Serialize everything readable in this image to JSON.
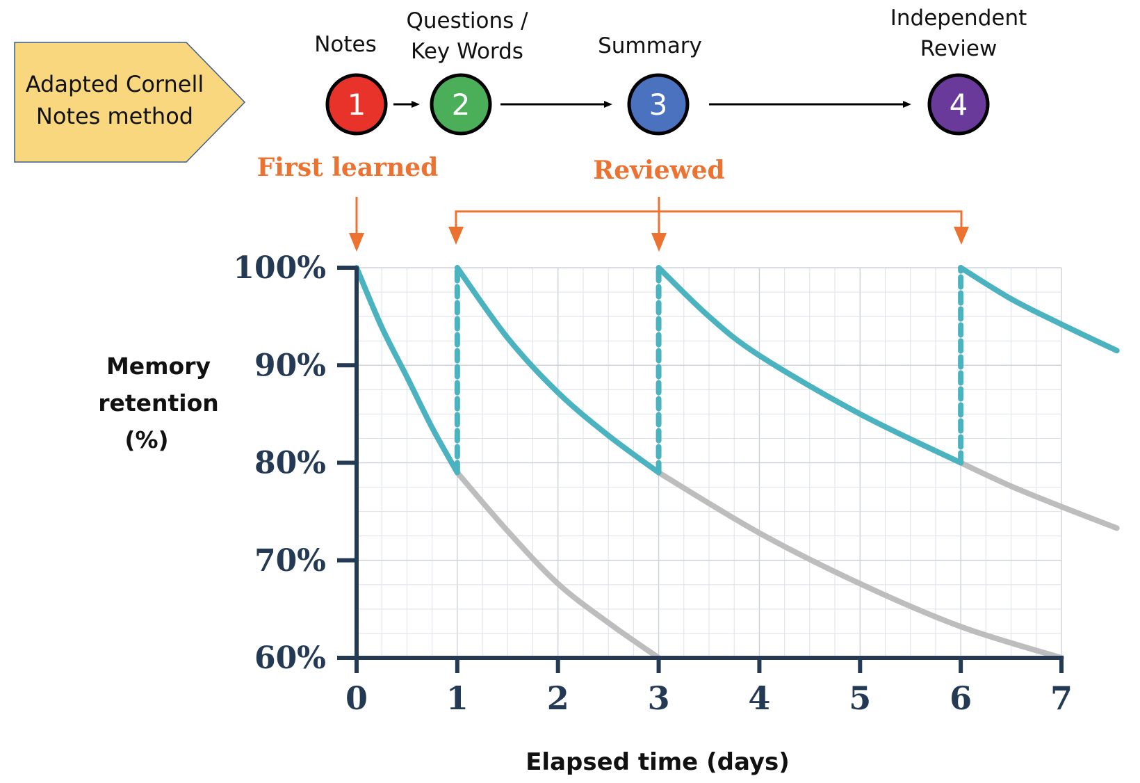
{
  "method_box": {
    "label": "Adapted Cornell\nNotes method",
    "fill": "#F9D77E",
    "stroke": "#3E5C8A"
  },
  "steps": [
    {
      "number": "1",
      "label": "Notes",
      "color": "#E8332A"
    },
    {
      "number": "2",
      "label": "Questions /\nKey Words",
      "color": "#4BAE59"
    },
    {
      "number": "3",
      "label": "Summary",
      "color": "#4A72BF"
    },
    {
      "number": "4",
      "label": "Independent\nReview",
      "color": "#6A3A9B"
    }
  ],
  "annotations": {
    "first_learned": "First learned",
    "reviewed": "Reviewed",
    "color": "#EC7232"
  },
  "chart_data": {
    "type": "line",
    "title": "",
    "xlabel": "Elapsed time (days)",
    "ylabel": "Memory\nretention\n(%)",
    "xlim": [
      0,
      7
    ],
    "ylim": [
      60,
      100
    ],
    "x_ticks": [
      "0",
      "1",
      "2",
      "3",
      "4",
      "5",
      "6",
      "7"
    ],
    "y_ticks": [
      "60%",
      "70%",
      "80%",
      "90%",
      "100%"
    ],
    "y_tick_values": [
      60,
      70,
      80,
      90,
      100
    ],
    "grid": true,
    "minor_grid": {
      "x_step": 0.25,
      "y_step": 2.5
    },
    "review_days": [
      0,
      1,
      3,
      6
    ],
    "colors": {
      "retained": "#4BB3BF",
      "forgotten": "#BDBDBD",
      "axis": "#243A54",
      "grid": "#DDE1E8"
    },
    "series": [
      {
        "name": "Retention after first learning",
        "style": "retained",
        "x": [
          0,
          0.25,
          0.5,
          0.75,
          1
        ],
        "y": [
          100,
          93.9,
          88.8,
          83.6,
          79
        ]
      },
      {
        "name": "Forgetting without review 1",
        "style": "forgotten",
        "x": [
          1,
          1.5,
          2,
          2.5,
          3
        ],
        "y": [
          79,
          73,
          67.6,
          63.6,
          60
        ]
      },
      {
        "name": "Retention after review 1",
        "style": "retained",
        "x": [
          1,
          1.5,
          2,
          2.5,
          3
        ],
        "y": [
          100,
          92.8,
          87.2,
          82.8,
          79
        ]
      },
      {
        "name": "Forgetting without review 2",
        "style": "forgotten",
        "x": [
          3,
          4,
          5,
          6,
          7
        ],
        "y": [
          79,
          72.8,
          67.6,
          63.2,
          60
        ]
      },
      {
        "name": "Retention after review 2",
        "style": "retained",
        "x": [
          3,
          3.5,
          4,
          5,
          6
        ],
        "y": [
          100,
          95,
          91,
          85,
          80
        ]
      },
      {
        "name": "Forgetting without review 3",
        "style": "forgotten",
        "x": [
          6,
          6.5,
          7,
          7.55
        ],
        "y": [
          80,
          77.6,
          75.5,
          73.3
        ]
      },
      {
        "name": "Retention after review 3",
        "style": "retained",
        "x": [
          6,
          6.5,
          7,
          7.55
        ],
        "y": [
          100,
          96.8,
          94.2,
          91.5
        ]
      }
    ],
    "review_jumps": [
      {
        "x": 1,
        "from": 79,
        "to": 100
      },
      {
        "x": 3,
        "from": 79,
        "to": 100
      },
      {
        "x": 6,
        "from": 80,
        "to": 100
      }
    ]
  }
}
